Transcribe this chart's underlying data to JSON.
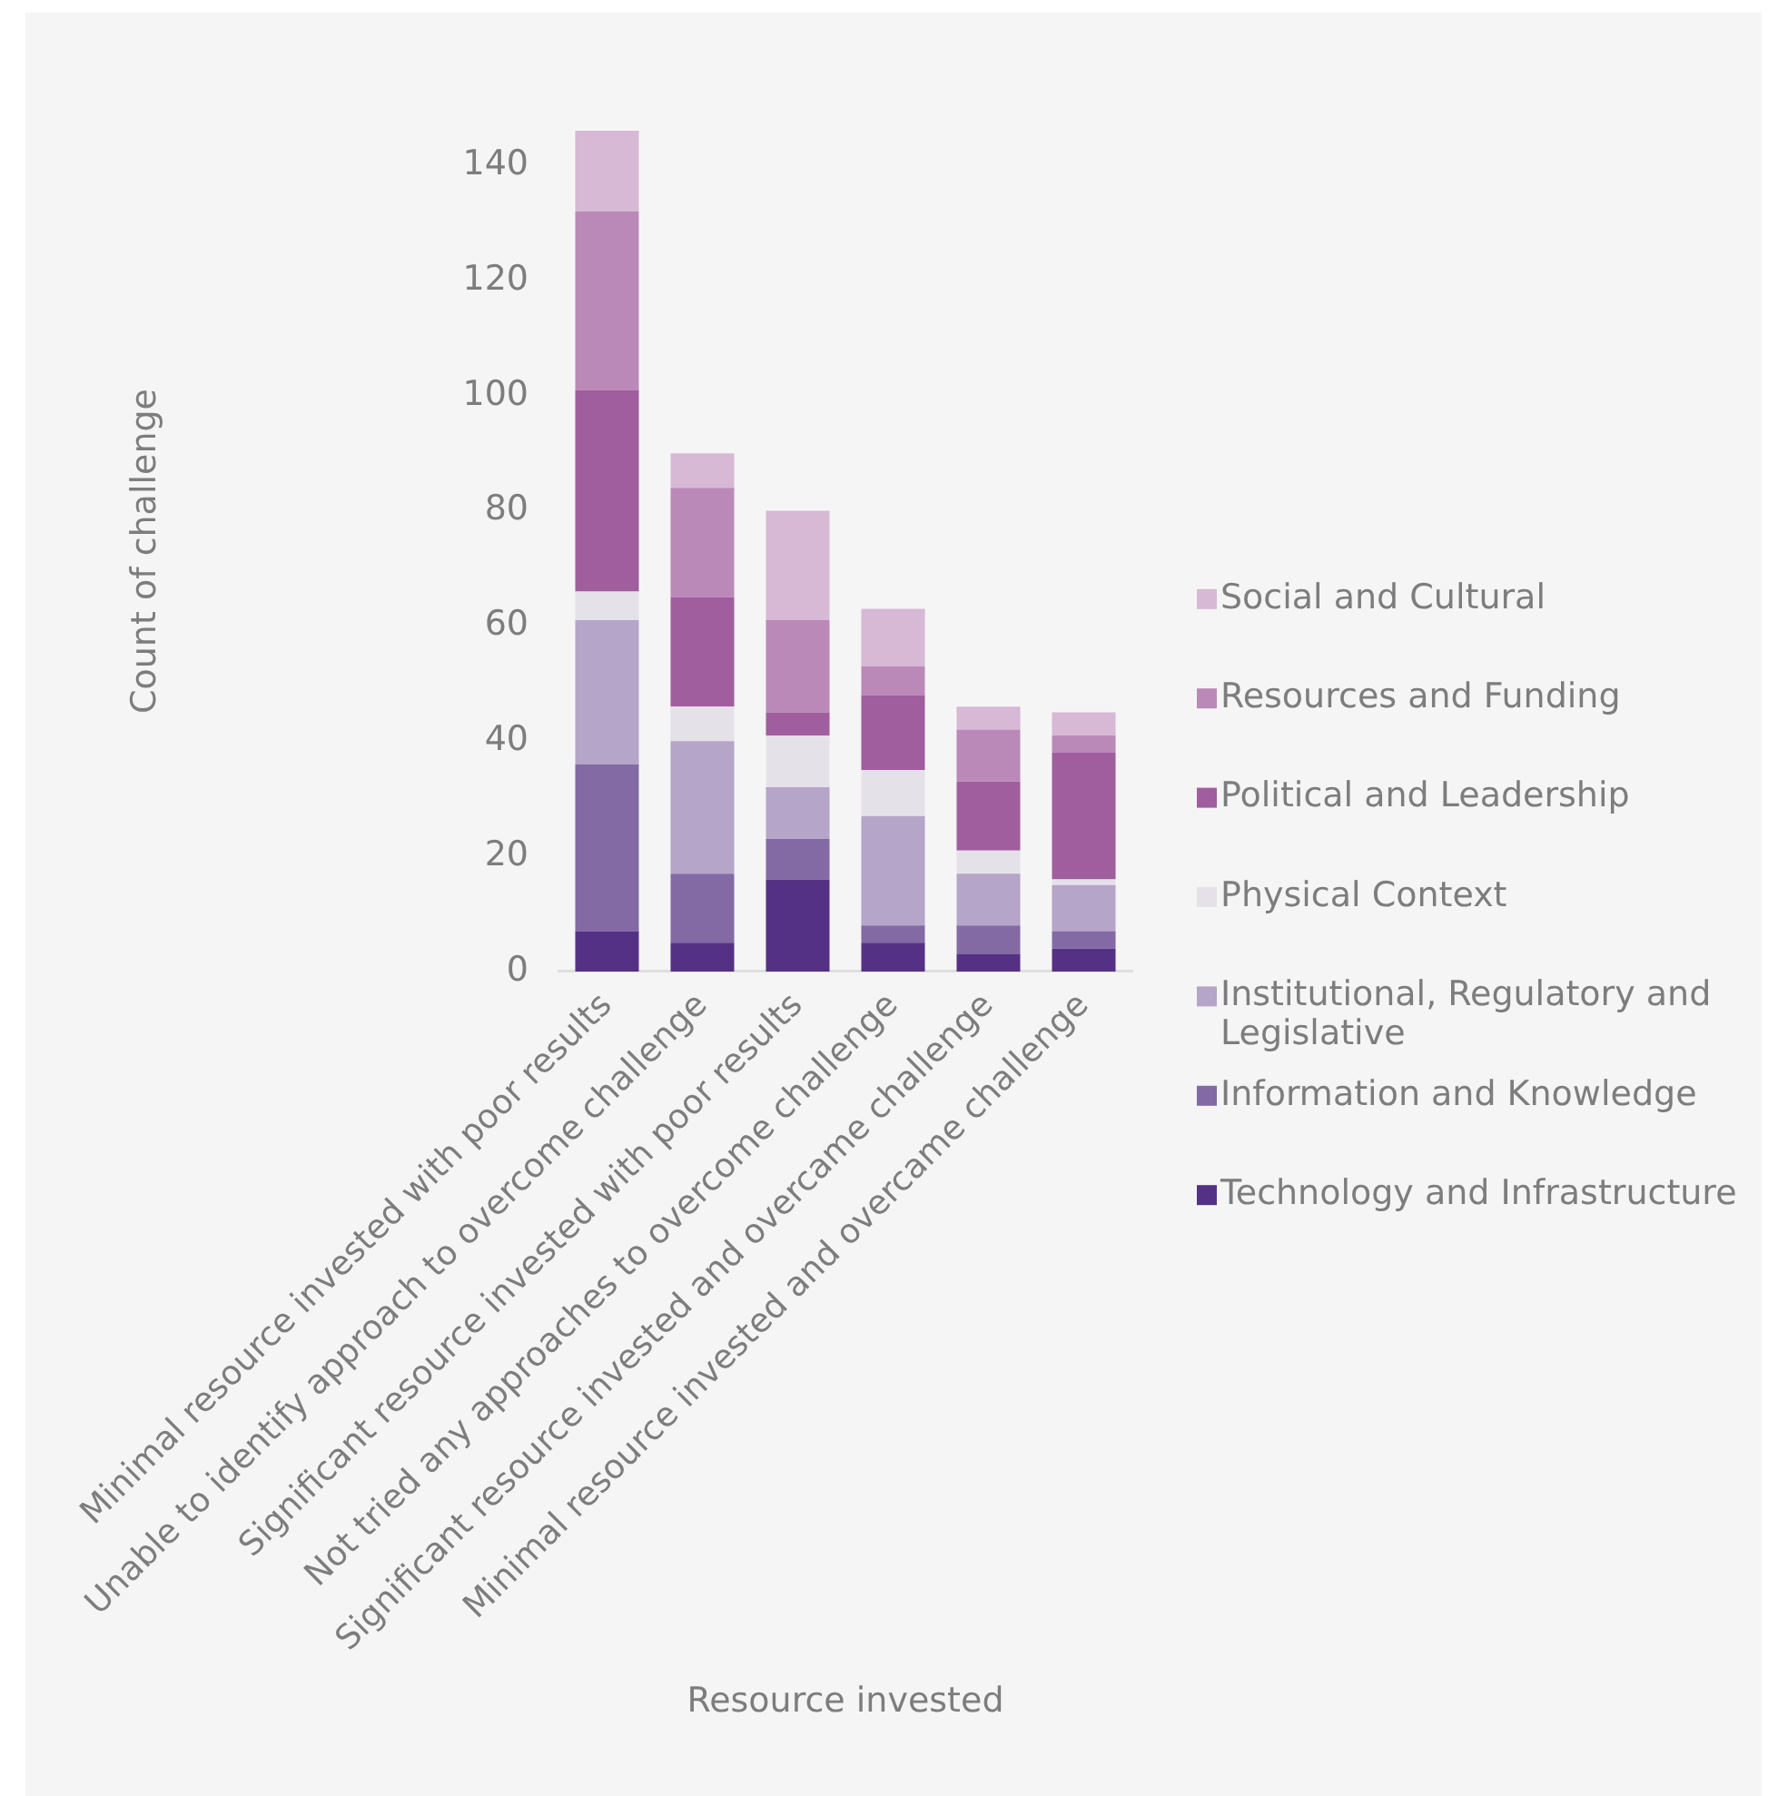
{
  "chart_data": {
    "type": "bar",
    "xlabel": "Resource invested",
    "ylabel": "Count of challenge",
    "categories": [
      "Minimal resource invested with poor results",
      "Unable to identify approach to overcome challenge",
      "Significant resource invested with poor results",
      "Not tried any approaches to overcome challenge",
      "Significant resource invested and overcame challenge",
      "Minimal resource invested and overcame challenge"
    ],
    "series": [
      {
        "name": "Technology and Infrastructure",
        "color": "#553185",
        "values": [
          7,
          5,
          16,
          5,
          3,
          4
        ]
      },
      {
        "name": "Information and Knowledge",
        "color": "#836aa5",
        "values": [
          29,
          12,
          7,
          3,
          5,
          3
        ]
      },
      {
        "name": "Institutional, Regulatory and Legislative",
        "color": "#b5a5c8",
        "values": [
          25,
          23,
          9,
          19,
          9,
          8
        ]
      },
      {
        "name": "Physical Context",
        "color": "#e5e1e9",
        "values": [
          5,
          6,
          9,
          8,
          4,
          1
        ]
      },
      {
        "name": "Political and Leadership",
        "color": "#a05e9e",
        "values": [
          35,
          19,
          4,
          13,
          12,
          22
        ]
      },
      {
        "name": "Resources and Funding",
        "color": "#bb89b8",
        "values": [
          31,
          19,
          16,
          5,
          9,
          3
        ]
      },
      {
        "name": "Social and Cultural",
        "color": "#d7b8d5",
        "values": [
          14,
          6,
          19,
          10,
          4,
          4
        ]
      }
    ],
    "stacked": true,
    "ylim": [
      0,
      146
    ],
    "yticks": [
      0,
      20,
      40,
      60,
      80,
      100,
      120,
      140
    ],
    "grid": false,
    "legend": "right"
  }
}
